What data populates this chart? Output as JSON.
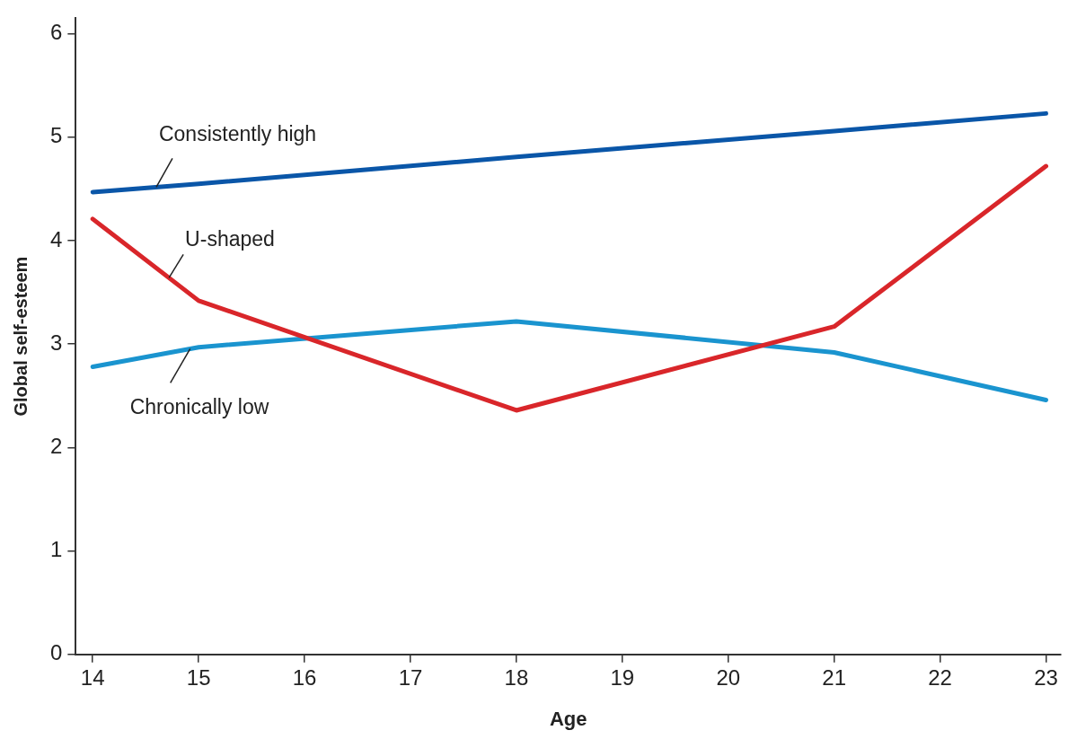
{
  "chart_data": {
    "type": "line",
    "xlabel": "Age",
    "ylabel": "Global self-esteem",
    "x": [
      14,
      15,
      18,
      21,
      23
    ],
    "series": [
      {
        "name": "Consistently high",
        "color": "#0a56a8",
        "values": [
          4.47,
          4.55,
          4.81,
          5.06,
          5.23
        ]
      },
      {
        "name": "U-shaped",
        "color": "#d9262a",
        "values": [
          4.21,
          3.42,
          2.36,
          3.17,
          4.72
        ]
      },
      {
        "name": "Chronically low",
        "color": "#1a94cf",
        "values": [
          2.78,
          2.97,
          3.22,
          2.92,
          2.46
        ]
      }
    ],
    "xlim": [
      13.84,
      23.14
    ],
    "xticks": [
      14,
      15,
      16,
      17,
      18,
      19,
      20,
      21,
      22,
      23
    ],
    "ylim": [
      0,
      6.15
    ],
    "yticks": [
      0,
      1,
      2,
      3,
      4,
      5,
      6
    ],
    "grid": false,
    "legend": false,
    "marker": "none",
    "line_style": "solid"
  }
}
